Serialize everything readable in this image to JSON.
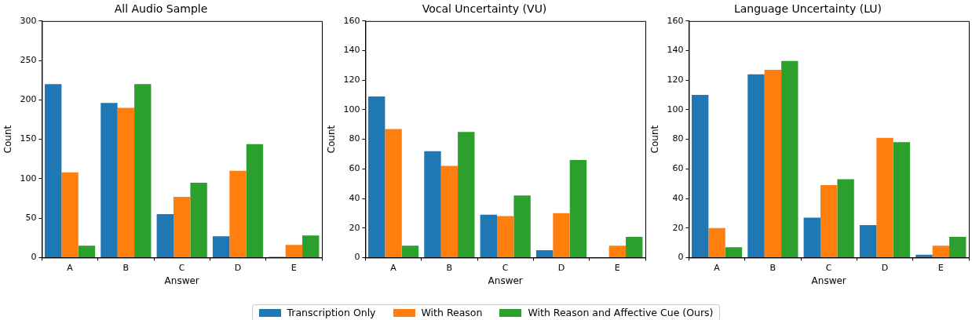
{
  "chart_data": [
    {
      "type": "bar",
      "title": "All Audio Sample",
      "xlabel": "Answer",
      "ylabel": "Count",
      "categories": [
        "A",
        "B",
        "C",
        "D",
        "E"
      ],
      "series": [
        {
          "name": "Transcription Only",
          "color": "#1f77b4",
          "values": [
            220,
            196,
            55,
            27,
            1
          ]
        },
        {
          "name": "With Reason",
          "color": "#ff7f0e",
          "values": [
            108,
            190,
            77,
            110,
            16
          ]
        },
        {
          "name": "With Reason and Affective Cue (Ours)",
          "color": "#2ca02c",
          "values": [
            15,
            220,
            95,
            144,
            28
          ]
        }
      ],
      "ylim": [
        0,
        300
      ],
      "yticks": [
        0,
        50,
        100,
        150,
        200,
        250,
        300
      ],
      "grid": false,
      "legend": "bottom"
    },
    {
      "type": "bar",
      "title": "Vocal Uncertainty (VU)",
      "xlabel": "Answer",
      "ylabel": "Count",
      "categories": [
        "A",
        "B",
        "C",
        "D",
        "E"
      ],
      "series": [
        {
          "name": "Transcription Only",
          "color": "#1f77b4",
          "values": [
            109,
            72,
            29,
            5,
            0
          ]
        },
        {
          "name": "With Reason",
          "color": "#ff7f0e",
          "values": [
            87,
            62,
            28,
            30,
            8
          ]
        },
        {
          "name": "With Reason and Affective Cue (Ours)",
          "color": "#2ca02c",
          "values": [
            8,
            85,
            42,
            66,
            14
          ]
        }
      ],
      "ylim": [
        0,
        160
      ],
      "yticks": [
        0,
        20,
        40,
        60,
        80,
        100,
        120,
        140,
        160
      ],
      "grid": false,
      "legend": "bottom"
    },
    {
      "type": "bar",
      "title": "Language Uncertainty (LU)",
      "xlabel": "Answer",
      "ylabel": "Count",
      "categories": [
        "A",
        "B",
        "C",
        "D",
        "E"
      ],
      "series": [
        {
          "name": "Transcription Only",
          "color": "#1f77b4",
          "values": [
            110,
            124,
            27,
            22,
            2
          ]
        },
        {
          "name": "With Reason",
          "color": "#ff7f0e",
          "values": [
            20,
            127,
            49,
            81,
            8
          ]
        },
        {
          "name": "With Reason and Affective Cue (Ours)",
          "color": "#2ca02c",
          "values": [
            7,
            133,
            53,
            78,
            14
          ]
        }
      ],
      "ylim": [
        0,
        160
      ],
      "yticks": [
        0,
        20,
        40,
        60,
        80,
        100,
        120,
        140,
        160
      ],
      "grid": false,
      "legend": "bottom"
    }
  ]
}
